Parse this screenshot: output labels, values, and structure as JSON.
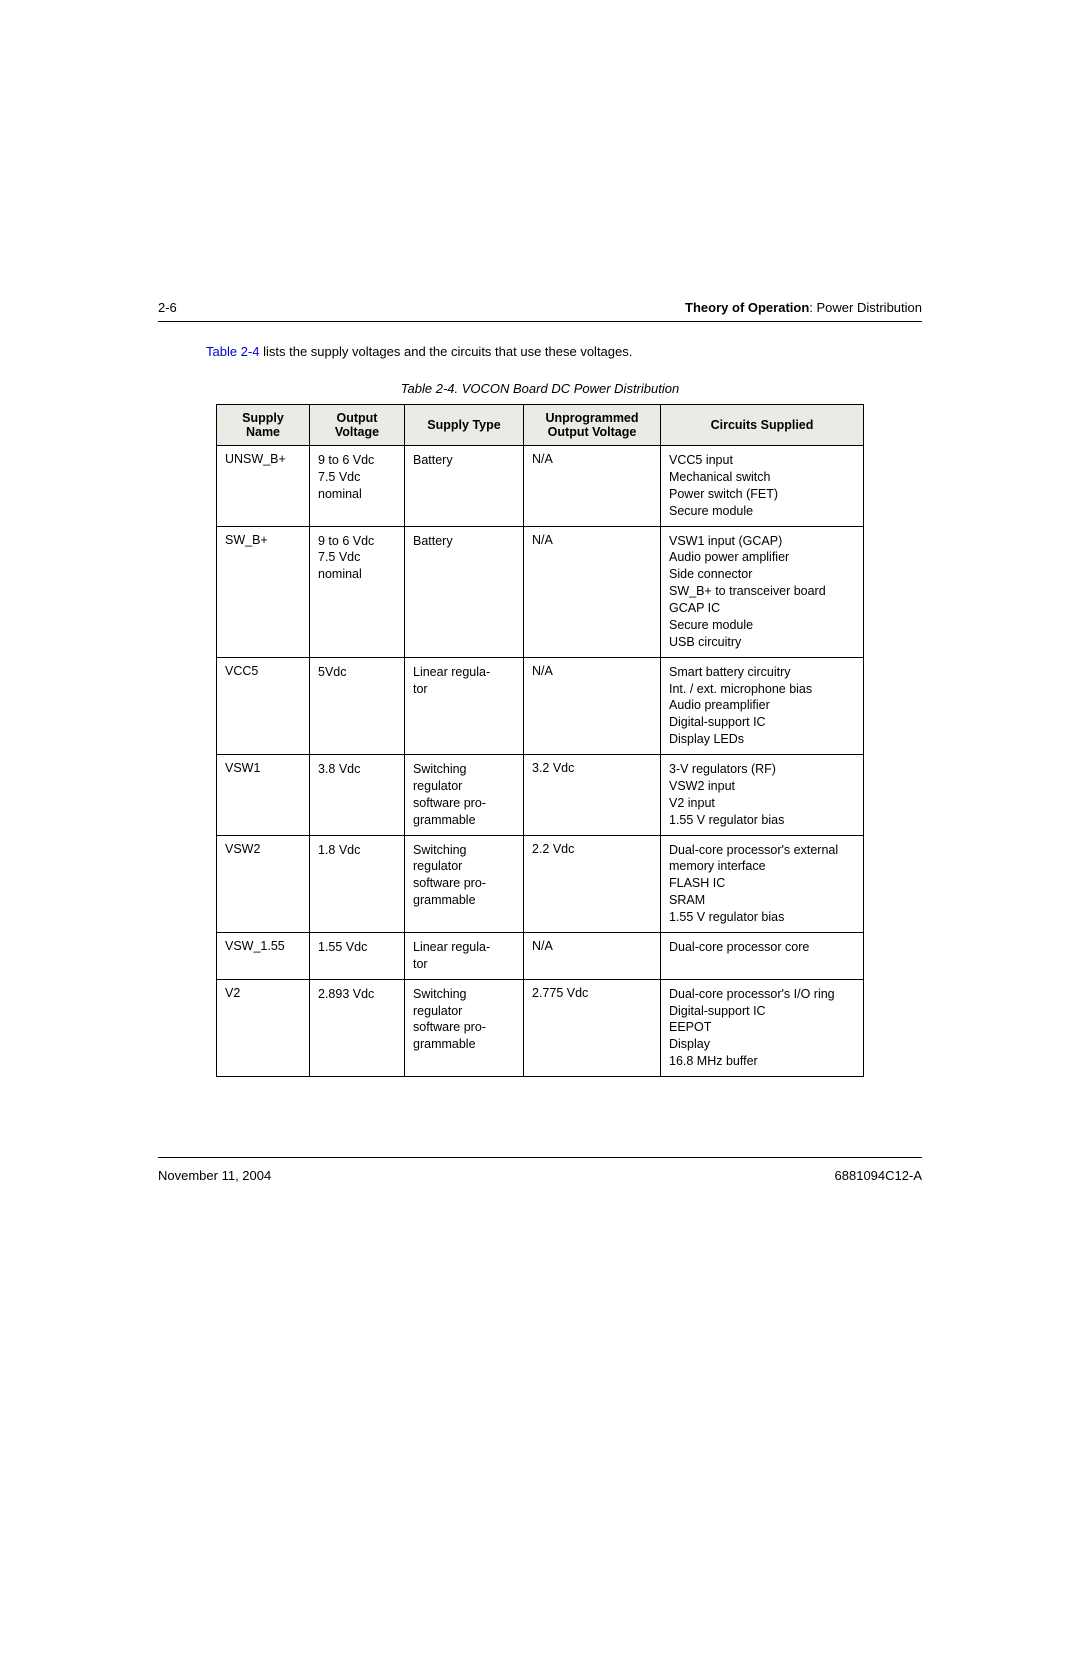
{
  "header": {
    "page_number": "2-6",
    "section_bold": "Theory of Operation",
    "section_rest": ": Power Distribution"
  },
  "intro": {
    "link_text": "Table 2-4",
    "rest": " lists the supply voltages and the circuits that use these voltages."
  },
  "table": {
    "caption": "Table 2-4.  VOCON Board DC Power Distribution",
    "columns": [
      "Supply Name",
      "Output Voltage",
      "Supply Type",
      "Unprogrammed Output Voltage",
      "Circuits Supplied"
    ],
    "rows": [
      {
        "supply_name": "UNSW_B+",
        "output_voltage": [
          "9 to 6 Vdc",
          "7.5 Vdc",
          "nominal"
        ],
        "supply_type": [
          "Battery"
        ],
        "unprogrammed": "N/A",
        "circuits": [
          "VCC5 input",
          "Mechanical switch",
          "Power switch (FET)",
          "Secure module"
        ]
      },
      {
        "supply_name": "SW_B+",
        "output_voltage": [
          "9 to 6 Vdc",
          "7.5 Vdc",
          "nominal"
        ],
        "supply_type": [
          "Battery"
        ],
        "unprogrammed": "N/A",
        "circuits": [
          "VSW1 input (GCAP)",
          "Audio power amplifier",
          "Side connector",
          "SW_B+ to transceiver board",
          "GCAP IC",
          "Secure module",
          "USB circuitry"
        ]
      },
      {
        "supply_name": "VCC5",
        "output_voltage": [
          "5Vdc"
        ],
        "supply_type": [
          "Linear regula-",
          "tor"
        ],
        "unprogrammed": "N/A",
        "circuits": [
          "Smart battery circuitry",
          "Int. / ext. microphone bias",
          "Audio preamplifier",
          "Digital-support IC",
          "Display LEDs"
        ]
      },
      {
        "supply_name": "VSW1",
        "output_voltage": [
          "3.8 Vdc"
        ],
        "supply_type": [
          "Switching",
          "regulator",
          "software pro-",
          "grammable"
        ],
        "unprogrammed": "3.2 Vdc",
        "circuits": [
          "3-V regulators (RF)",
          "VSW2 input",
          "V2 input",
          "1.55 V regulator bias"
        ]
      },
      {
        "supply_name": "VSW2",
        "output_voltage": [
          "1.8 Vdc"
        ],
        "supply_type": [
          "Switching",
          "regulator",
          "software pro-",
          "grammable"
        ],
        "unprogrammed": "2.2 Vdc",
        "circuits": [
          "Dual-core processor's external",
          "memory interface",
          "FLASH IC",
          "SRAM",
          "1.55 V regulator bias"
        ]
      },
      {
        "supply_name": "VSW_1.55",
        "output_voltage": [
          "1.55 Vdc"
        ],
        "supply_type": [
          "Linear regula-",
          "tor"
        ],
        "unprogrammed": "N/A",
        "circuits": [
          "Dual-core processor core"
        ]
      },
      {
        "supply_name": "V2",
        "output_voltage": [
          "2.893 Vdc"
        ],
        "supply_type": [
          "Switching",
          "regulator",
          "software pro-",
          "grammable"
        ],
        "unprogrammed": "2.775 Vdc",
        "circuits": [
          "Dual-core processor's I/O ring",
          "Digital-support IC",
          "EEPOT",
          "Display",
          "16.8 MHz buffer"
        ]
      }
    ]
  },
  "footer": {
    "date": "November 11, 2004",
    "doc_id": "6881094C12-A"
  }
}
